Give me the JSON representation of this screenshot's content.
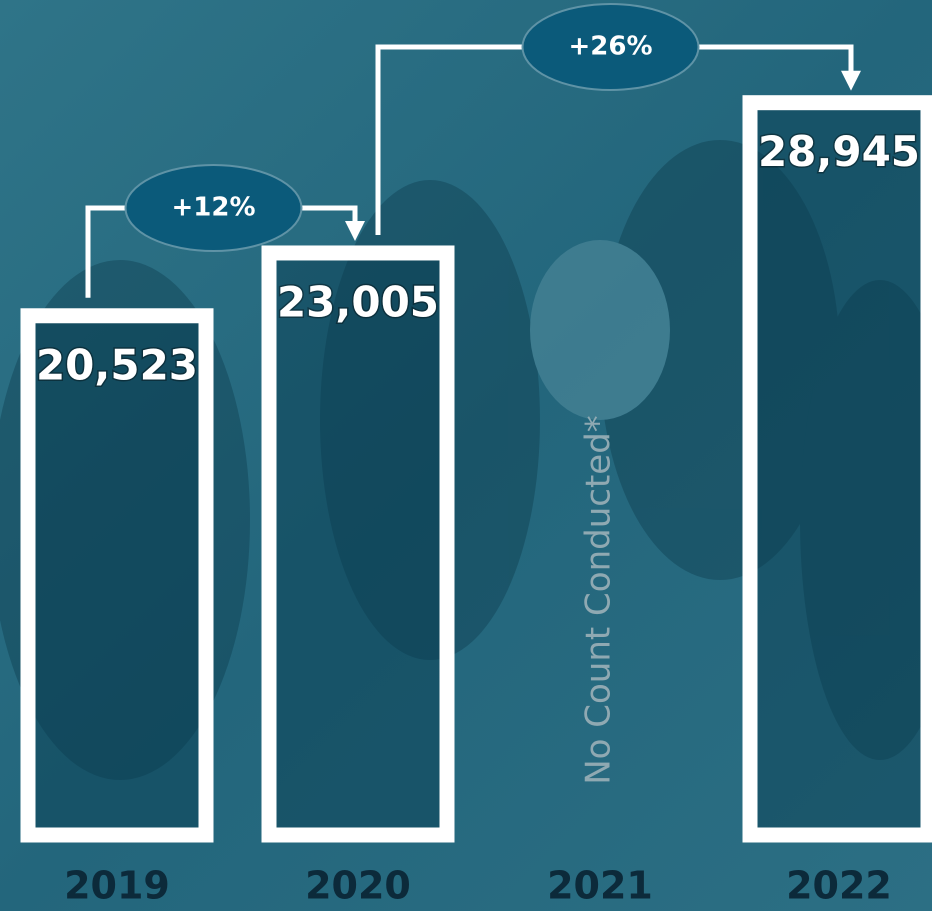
{
  "chart_data": {
    "type": "bar",
    "categories": [
      "2019",
      "2020",
      "2021",
      "2022"
    ],
    "values": [
      20523,
      23005,
      null,
      28945
    ],
    "value_labels": [
      "20,523",
      "23,005",
      null,
      "28,945"
    ],
    "color": "#ffffff",
    "annotations": [
      "+12%",
      "+26%"
    ],
    "missing_note": "No Count Conducted*"
  }
}
